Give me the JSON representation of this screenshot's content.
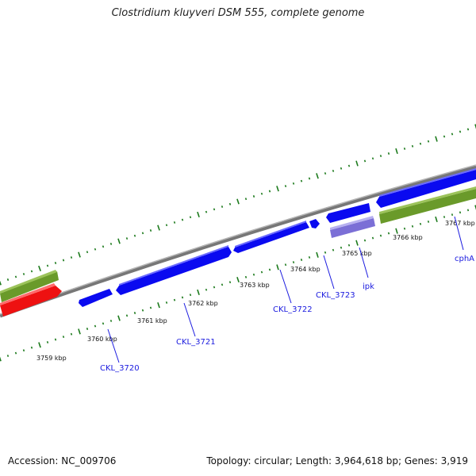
{
  "header": {
    "title": "Clostridium kluyveri DSM 555, complete genome"
  },
  "footer": {
    "accession": "Accession: NC_009706",
    "summary": "Topology: circular; Length: 3,964,618 bp; Genes: 3,919"
  },
  "map": {
    "colors": {
      "backbone": "#8c8c8c",
      "gene_fwd": "#0a0af0",
      "gene_rev": "#0a0af0",
      "rna": "#7b6fd6",
      "olive": "#6a9a2a",
      "red": "#ee1111",
      "ticks": "#1c7a1c",
      "label": "#1a1adf"
    },
    "kbp_labels": [
      "3759 kbp",
      "3760 kbp",
      "3761 kbp",
      "3762 kbp",
      "3763 kbp",
      "3764 kbp",
      "3765 kbp",
      "3766 kbp",
      "3767 kbp"
    ],
    "gene_labels": [
      "CKL_3720",
      "CKL_3721",
      "CKL_3722",
      "CKL_3723",
      "ipk",
      "cphA"
    ]
  }
}
